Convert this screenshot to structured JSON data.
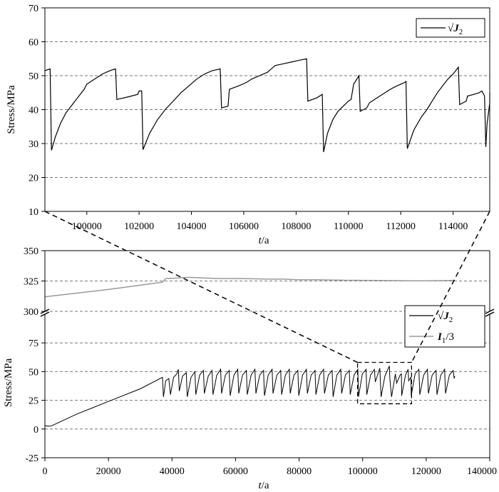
{
  "chart_data": [
    {
      "type": "line",
      "panel": "top (zoomed inset)",
      "xlabel_italic": "t",
      "xlabel_rest": "/a",
      "ylabel": "Stress/MPa",
      "xlim": [
        98400,
        115400
      ],
      "ylim": [
        10,
        70
      ],
      "xticks": [
        100000,
        102000,
        104000,
        106000,
        108000,
        110000,
        112000,
        114000
      ],
      "yticks": [
        10,
        20,
        30,
        40,
        50,
        60,
        70
      ],
      "grid": {
        "horizontal_dashed": true,
        "vertical": false
      },
      "legend_position": "top-right",
      "series": [
        {
          "name": "√J2",
          "legend_label": "√J₂",
          "color": "#000000",
          "points": [
            [
              98400,
              51.5
            ],
            [
              98600,
              52
            ],
            [
              98650,
              28
            ],
            [
              98800,
              32
            ],
            [
              99000,
              36
            ],
            [
              99200,
              39
            ],
            [
              99400,
              41
            ],
            [
              99600,
              43
            ],
            [
              99800,
              45
            ],
            [
              99900,
              46
            ],
            [
              100000,
              47.5
            ],
            [
              100200,
              48.5
            ],
            [
              100400,
              49.5
            ],
            [
              100600,
              50.5
            ],
            [
              100800,
              51.2
            ],
            [
              101000,
              51.8
            ],
            [
              101100,
              52
            ],
            [
              101150,
              43
            ],
            [
              101600,
              43.8
            ],
            [
              101950,
              44.5
            ],
            [
              102000,
              45.5
            ],
            [
              102100,
              45.5
            ],
            [
              102150,
              28.2
            ],
            [
              102400,
              33
            ],
            [
              102700,
              37
            ],
            [
              103000,
              40
            ],
            [
              103300,
              42.5
            ],
            [
              103600,
              45
            ],
            [
              103900,
              47
            ],
            [
              104200,
              49
            ],
            [
              104500,
              50.5
            ],
            [
              104800,
              51.5
            ],
            [
              105100,
              52
            ],
            [
              105150,
              40.5
            ],
            [
              105400,
              41
            ],
            [
              105450,
              46
            ],
            [
              105800,
              47
            ],
            [
              106100,
              48
            ],
            [
              106300,
              49
            ],
            [
              106600,
              50
            ],
            [
              106900,
              51
            ],
            [
              107200,
              53
            ],
            [
              107500,
              53.5
            ],
            [
              107800,
              54
            ],
            [
              108100,
              54.5
            ],
            [
              108400,
              55
            ],
            [
              108450,
              42.5
            ],
            [
              108800,
              43.5
            ],
            [
              109000,
              44.5
            ],
            [
              109050,
              27.5
            ],
            [
              109200,
              33
            ],
            [
              109400,
              37
            ],
            [
              109600,
              39.5
            ],
            [
              109800,
              41
            ],
            [
              110000,
              42.5
            ],
            [
              110100,
              43
            ],
            [
              110200,
              47.5
            ],
            [
              110400,
              50
            ],
            [
              110450,
              39.5
            ],
            [
              110700,
              40.5
            ],
            [
              110800,
              42
            ],
            [
              111000,
              43
            ],
            [
              111200,
              44
            ],
            [
              111400,
              45
            ],
            [
              111600,
              46
            ],
            [
              111800,
              46.8
            ],
            [
              112000,
              47.5
            ],
            [
              112150,
              48
            ],
            [
              112200,
              48.3
            ],
            [
              112250,
              28.5
            ],
            [
              112500,
              34
            ],
            [
              112800,
              38
            ],
            [
              113000,
              40
            ],
            [
              113200,
              42.5
            ],
            [
              113400,
              45
            ],
            [
              113600,
              47
            ],
            [
              113800,
              49
            ],
            [
              114000,
              50.5
            ],
            [
              114100,
              51.5
            ],
            [
              114200,
              52.5
            ],
            [
              114250,
              41.5
            ],
            [
              114500,
              42.5
            ],
            [
              114550,
              44
            ],
            [
              114800,
              44.5
            ],
            [
              115000,
              45
            ],
            [
              115100,
              45.5
            ],
            [
              115200,
              44
            ],
            [
              115250,
              29
            ],
            [
              115300,
              36
            ],
            [
              115350,
              39
            ],
            [
              115400,
              42
            ],
            [
              115400,
              45
            ]
          ]
        }
      ]
    },
    {
      "type": "line",
      "panel": "bottom (full history, broken y-axis)",
      "xlabel_italic": "t",
      "xlabel_rest": "/a",
      "ylabel": "Stress/MPa",
      "xlim": [
        0,
        140000
      ],
      "ylim_lower": [
        -25,
        100
      ],
      "ylim_upper": [
        300,
        350
      ],
      "axis_break": true,
      "xticks": [
        0,
        20000,
        40000,
        60000,
        80000,
        100000,
        120000,
        140000
      ],
      "yticks_lower": [
        -25,
        0,
        25,
        50,
        75
      ],
      "yticks_upper": [
        300,
        325,
        350
      ],
      "grid": {
        "horizontal_dashed": true,
        "vertical": false
      },
      "legend_position": "middle-right",
      "zoom_box": {
        "x": [
          98400,
          115400
        ],
        "y": [
          22,
          58
        ]
      },
      "series": [
        {
          "name": "√J2",
          "legend_label": "√J₂",
          "color": "#000000",
          "points": [
            [
              0,
              3
            ],
            [
              800,
              2.5
            ],
            [
              1800,
              2.5
            ],
            [
              3000,
              4
            ],
            [
              10000,
              13
            ],
            [
              20000,
              24
            ],
            [
              30000,
              35
            ],
            [
              37000,
              45
            ],
            [
              37300,
              28
            ],
            [
              38000,
              42
            ],
            [
              39000,
              44
            ],
            [
              39500,
              30
            ],
            [
              40500,
              45
            ],
            [
              41500,
              48
            ],
            [
              42000,
              52
            ],
            [
              42300,
              33
            ],
            [
              43300,
              46
            ],
            [
              44500,
              49
            ],
            [
              44800,
              28
            ],
            [
              46000,
              45
            ],
            [
              47200,
              50
            ],
            [
              47500,
              30
            ],
            [
              48700,
              47
            ],
            [
              49900,
              51
            ],
            [
              50200,
              31
            ],
            [
              51400,
              46
            ],
            [
              52600,
              51
            ],
            [
              52900,
              30
            ],
            [
              54100,
              47
            ],
            [
              55300,
              52
            ],
            [
              55600,
              31
            ],
            [
              56800,
              47
            ],
            [
              58000,
              51
            ],
            [
              58300,
              29
            ],
            [
              59500,
              47
            ],
            [
              60700,
              52
            ],
            [
              61000,
              31
            ],
            [
              62200,
              47
            ],
            [
              63400,
              51
            ],
            [
              63700,
              30
            ],
            [
              64900,
              47
            ],
            [
              66100,
              52
            ],
            [
              66400,
              31
            ],
            [
              67600,
              47
            ],
            [
              68800,
              51
            ],
            [
              69100,
              29
            ],
            [
              70300,
              47
            ],
            [
              71500,
              52
            ],
            [
              71800,
              31
            ],
            [
              73000,
              47
            ],
            [
              74200,
              51
            ],
            [
              74500,
              30
            ],
            [
              75700,
              47
            ],
            [
              76900,
              52
            ],
            [
              77200,
              31
            ],
            [
              78400,
              47
            ],
            [
              79600,
              51
            ],
            [
              79900,
              29
            ],
            [
              81100,
              47
            ],
            [
              82300,
              52
            ],
            [
              82600,
              31
            ],
            [
              83800,
              47
            ],
            [
              85000,
              51
            ],
            [
              85300,
              30
            ],
            [
              86500,
              47
            ],
            [
              87700,
              52
            ],
            [
              88000,
              31
            ],
            [
              89200,
              47
            ],
            [
              90400,
              51
            ],
            [
              90700,
              28
            ],
            [
              91900,
              47
            ],
            [
              93100,
              52
            ],
            [
              93400,
              31
            ],
            [
              94600,
              47
            ],
            [
              95800,
              51
            ],
            [
              96100,
              30
            ],
            [
              97300,
              47
            ],
            [
              98500,
              52
            ],
            [
              98700,
              28
            ],
            [
              99900,
              48
            ],
            [
              101100,
              52
            ],
            [
              101300,
              30
            ],
            [
              102500,
              47
            ],
            [
              103700,
              52
            ],
            [
              104000,
              41
            ],
            [
              105400,
              53
            ],
            [
              105800,
              28
            ],
            [
              107000,
              46
            ],
            [
              108400,
              55
            ],
            [
              108600,
              43
            ],
            [
              109100,
              28
            ],
            [
              110300,
              48
            ],
            [
              110700,
              40
            ],
            [
              111800,
              47
            ],
            [
              112200,
              48
            ],
            [
              112300,
              29
            ],
            [
              113500,
              47
            ],
            [
              114300,
              52
            ],
            [
              114500,
              42
            ],
            [
              115200,
              45
            ],
            [
              115300,
              29
            ],
            [
              116500,
              48
            ],
            [
              117700,
              52
            ],
            [
              118000,
              30
            ],
            [
              119200,
              47
            ],
            [
              120400,
              52
            ],
            [
              120700,
              31
            ],
            [
              121900,
              47
            ],
            [
              123100,
              51
            ],
            [
              123400,
              30
            ],
            [
              124600,
              47
            ],
            [
              125800,
              52
            ],
            [
              126100,
              31
            ],
            [
              127300,
              47
            ],
            [
              128500,
              51
            ],
            [
              128800,
              44
            ],
            [
              129000,
              46
            ]
          ]
        },
        {
          "name": "I1/3",
          "legend_label": "I₁/3",
          "color": "#999999",
          "points": [
            [
              0,
              312
            ],
            [
              10000,
              315
            ],
            [
              20000,
              318
            ],
            [
              30000,
              321.5
            ],
            [
              37000,
              324
            ],
            [
              38000,
              327
            ],
            [
              42000,
              327.5
            ],
            [
              45000,
              328
            ],
            [
              50000,
              327.5
            ],
            [
              55000,
              327
            ],
            [
              60000,
              327
            ],
            [
              65000,
              326.8
            ],
            [
              70000,
              326.5
            ],
            [
              75000,
              326.5
            ],
            [
              80000,
              326
            ],
            [
              85000,
              326
            ],
            [
              90000,
              325.8
            ],
            [
              95000,
              325.6
            ],
            [
              100000,
              325.5
            ],
            [
              105000,
              325.4
            ],
            [
              110000,
              325.3
            ],
            [
              115000,
              325.2
            ],
            [
              120000,
              325.2
            ],
            [
              125000,
              325.3
            ],
            [
              129000,
              325.5
            ]
          ]
        }
      ]
    }
  ]
}
